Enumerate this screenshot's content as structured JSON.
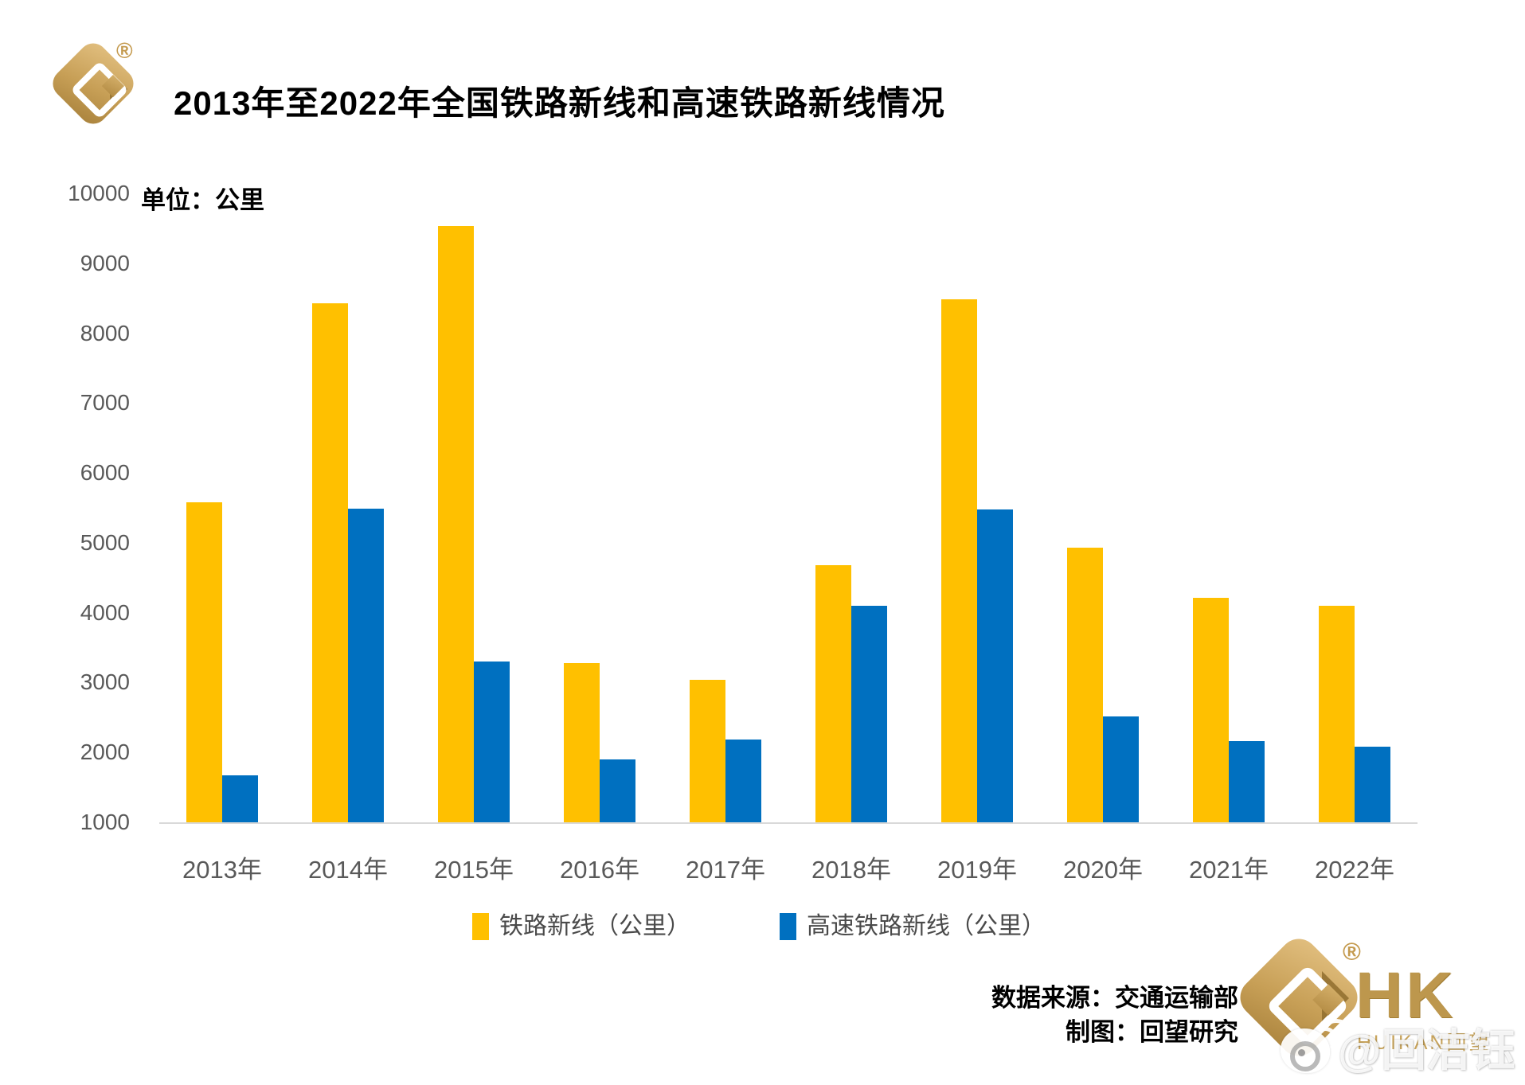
{
  "header": {
    "title": "2013年至2022年全国铁路新线和高速铁路新线情况",
    "registered_mark": "®"
  },
  "chart_data": {
    "type": "bar",
    "title": "2013年至2022年全国铁路新线和高速铁路新线情况",
    "unit_label": "单位：公里",
    "categories": [
      "2013年",
      "2014年",
      "2015年",
      "2016年",
      "2017年",
      "2018年",
      "2019年",
      "2020年",
      "2021年",
      "2022年"
    ],
    "series": [
      {
        "name": "铁路新线（公里）",
        "color": "#FFC000",
        "values": [
          5586,
          8427,
          9531,
          3281,
          3038,
          4683,
          8489,
          4933,
          4208,
          4100
        ]
      },
      {
        "name": "高速铁路新线（公里）",
        "color": "#0070C0",
        "values": [
          1672,
          5491,
          3306,
          1903,
          2182,
          4100,
          5474,
          2521,
          2168,
          2082
        ]
      }
    ],
    "ylim": [
      1000,
      10000
    ],
    "y_ticks": [
      10000,
      9000,
      8000,
      7000,
      6000,
      5000,
      4000,
      3000,
      2000,
      1000
    ],
    "grid": false,
    "legend_position": "bottom",
    "axis_line_color": "#D9D9D9",
    "tick_label_color": "#595959"
  },
  "footer": {
    "source_line": "数据来源：交通运输部",
    "credit_line": "制图：回望研究"
  },
  "brand": {
    "registered_mark": "®",
    "hk": "HK",
    "name": "HUIKAN回望"
  },
  "watermark": {
    "handle": "@回洁钰"
  }
}
